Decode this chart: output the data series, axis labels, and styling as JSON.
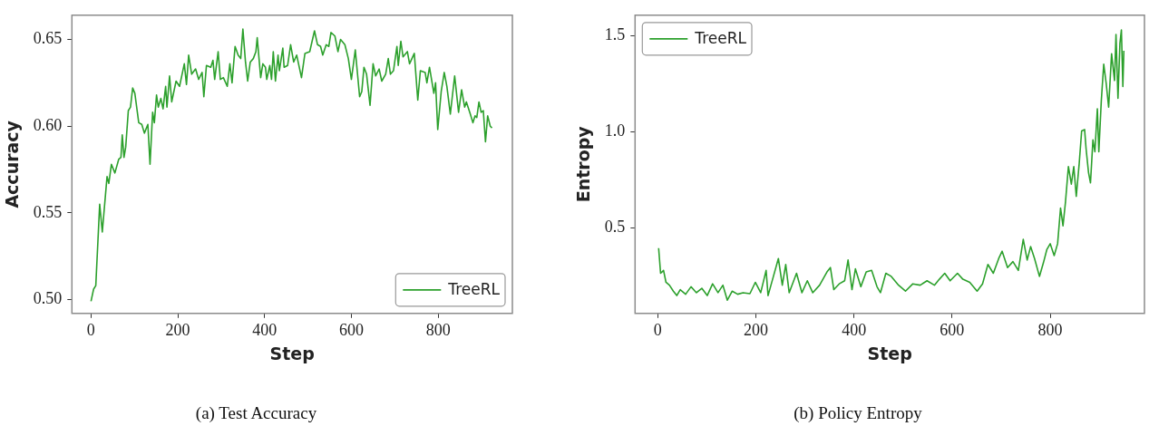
{
  "chart_data": [
    {
      "type": "line",
      "title": "(a) Test Accuracy",
      "xlabel": "Step",
      "ylabel": "Accuracy",
      "xlim": [
        -44,
        971
      ],
      "ylim": [
        0.492,
        0.664
      ],
      "xticks": [
        0,
        200,
        400,
        600,
        800
      ],
      "yticks": [
        {
          "value": 0.5,
          "label": "0.50"
        },
        {
          "value": 0.55,
          "label": "0.55"
        },
        {
          "value": 0.6,
          "label": "0.60"
        },
        {
          "value": 0.65,
          "label": "0.65"
        }
      ],
      "grid": false,
      "legend": "bottom right",
      "marker": "none",
      "line_style": "solid",
      "series": [
        {
          "name": "TreeRL",
          "color": "#2ca02c",
          "x": [
            0,
            6,
            11,
            20,
            26,
            37,
            41,
            47,
            55,
            64,
            69,
            72,
            76,
            80,
            86,
            91,
            96,
            101,
            110,
            117,
            123,
            131,
            136,
            142,
            146,
            151,
            155,
            161,
            166,
            172,
            175,
            181,
            186,
            196,
            204,
            215,
            220,
            225,
            232,
            241,
            248,
            256,
            260,
            266,
            276,
            281,
            285,
            293,
            298,
            305,
            314,
            320,
            325,
            332,
            339,
            345,
            350,
            356,
            361,
            367,
            374,
            380,
            383,
            391,
            396,
            402,
            405,
            412,
            416,
            420,
            425,
            431,
            434,
            442,
            445,
            453,
            460,
            467,
            474,
            485,
            493,
            504,
            515,
            522,
            529,
            534,
            542,
            548,
            553,
            562,
            569,
            575,
            585,
            593,
            600,
            609,
            619,
            624,
            629,
            635,
            643,
            650,
            656,
            664,
            670,
            679,
            685,
            690,
            697,
            705,
            708,
            714,
            719,
            729,
            734,
            745,
            753,
            759,
            770,
            774,
            780,
            790,
            794,
            799,
            807,
            814,
            820,
            828,
            838,
            847,
            854,
            861,
            865,
            874,
            880,
            885,
            889,
            894,
            899,
            904,
            909,
            914,
            920,
            924
          ],
          "values": [
            0.499,
            0.506,
            0.508,
            0.555,
            0.539,
            0.571,
            0.567,
            0.578,
            0.573,
            0.581,
            0.582,
            0.595,
            0.582,
            0.588,
            0.609,
            0.611,
            0.622,
            0.619,
            0.602,
            0.601,
            0.596,
            0.601,
            0.578,
            0.608,
            0.602,
            0.618,
            0.611,
            0.616,
            0.61,
            0.623,
            0.611,
            0.629,
            0.614,
            0.626,
            0.623,
            0.636,
            0.624,
            0.641,
            0.63,
            0.633,
            0.627,
            0.631,
            0.617,
            0.635,
            0.634,
            0.638,
            0.627,
            0.643,
            0.627,
            0.628,
            0.623,
            0.636,
            0.625,
            0.646,
            0.641,
            0.639,
            0.656,
            0.637,
            0.626,
            0.637,
            0.639,
            0.643,
            0.651,
            0.628,
            0.636,
            0.634,
            0.627,
            0.635,
            0.627,
            0.643,
            0.626,
            0.641,
            0.632,
            0.645,
            0.634,
            0.635,
            0.647,
            0.637,
            0.641,
            0.628,
            0.642,
            0.643,
            0.655,
            0.647,
            0.646,
            0.641,
            0.647,
            0.646,
            0.654,
            0.652,
            0.643,
            0.65,
            0.647,
            0.639,
            0.627,
            0.644,
            0.617,
            0.62,
            0.634,
            0.63,
            0.612,
            0.636,
            0.629,
            0.633,
            0.626,
            0.63,
            0.639,
            0.63,
            0.632,
            0.646,
            0.635,
            0.649,
            0.64,
            0.643,
            0.636,
            0.642,
            0.615,
            0.632,
            0.631,
            0.625,
            0.634,
            0.619,
            0.625,
            0.598,
            0.62,
            0.631,
            0.623,
            0.607,
            0.629,
            0.608,
            0.621,
            0.611,
            0.614,
            0.607,
            0.602,
            0.606,
            0.605,
            0.614,
            0.608,
            0.609,
            0.591,
            0.606,
            0.6,
            0.599
          ]
        }
      ]
    },
    {
      "type": "line",
      "title": "(b) Policy Entropy",
      "xlabel": "Step",
      "ylabel": "Entropy",
      "xlim": [
        -46,
        992
      ],
      "ylim": [
        0.055,
        1.608
      ],
      "xticks": [
        0,
        200,
        400,
        600,
        800
      ],
      "yticks": [
        {
          "value": 0.5,
          "label": "0.5"
        },
        {
          "value": 1,
          "label": "1.0"
        },
        {
          "value": 1.5,
          "label": "1.5"
        }
      ],
      "grid": false,
      "legend": "top left",
      "marker": "none",
      "line_style": "solid",
      "series": [
        {
          "name": "TreeRL",
          "color": "#2ca02c",
          "x": [
            2,
            6,
            12,
            17,
            24,
            32,
            39,
            46,
            57,
            68,
            79,
            90,
            101,
            112,
            123,
            133,
            142,
            152,
            163,
            174,
            188,
            199,
            210,
            221,
            225,
            235,
            246,
            254,
            261,
            268,
            283,
            294,
            305,
            316,
            330,
            345,
            352,
            359,
            370,
            381,
            388,
            396,
            403,
            414,
            425,
            436,
            447,
            454,
            465,
            476,
            491,
            505,
            520,
            535,
            549,
            564,
            574,
            585,
            596,
            611,
            622,
            636,
            651,
            662,
            673,
            684,
            695,
            702,
            713,
            724,
            735,
            745,
            753,
            760,
            768,
            778,
            786,
            793,
            800,
            808,
            815,
            821,
            826,
            831,
            837,
            843,
            848,
            853,
            859,
            864,
            870,
            873,
            878,
            882,
            887,
            891,
            896,
            899,
            904,
            909,
            914,
            919,
            925,
            931,
            934,
            938,
            942,
            945,
            948,
            950
          ],
          "values": [
            0.395,
            0.264,
            0.279,
            0.217,
            0.202,
            0.171,
            0.148,
            0.179,
            0.155,
            0.194,
            0.163,
            0.186,
            0.148,
            0.209,
            0.163,
            0.202,
            0.124,
            0.171,
            0.155,
            0.163,
            0.158,
            0.217,
            0.163,
            0.279,
            0.148,
            0.24,
            0.341,
            0.202,
            0.31,
            0.163,
            0.264,
            0.163,
            0.225,
            0.163,
            0.202,
            0.271,
            0.294,
            0.179,
            0.209,
            0.225,
            0.333,
            0.179,
            0.287,
            0.194,
            0.271,
            0.279,
            0.194,
            0.163,
            0.264,
            0.248,
            0.202,
            0.171,
            0.209,
            0.202,
            0.225,
            0.202,
            0.233,
            0.264,
            0.225,
            0.264,
            0.233,
            0.217,
            0.171,
            0.209,
            0.31,
            0.264,
            0.341,
            0.379,
            0.294,
            0.325,
            0.279,
            0.441,
            0.333,
            0.403,
            0.341,
            0.248,
            0.318,
            0.387,
            0.418,
            0.356,
            0.418,
            0.604,
            0.511,
            0.634,
            0.82,
            0.728,
            0.82,
            0.665,
            0.836,
            1.005,
            1.013,
            0.913,
            0.789,
            0.735,
            0.959,
            0.897,
            1.121,
            0.897,
            1.16,
            1.353,
            1.253,
            1.129,
            1.407,
            1.268,
            1.508,
            1.175,
            1.461,
            1.531,
            1.237,
            1.423
          ]
        }
      ]
    }
  ]
}
